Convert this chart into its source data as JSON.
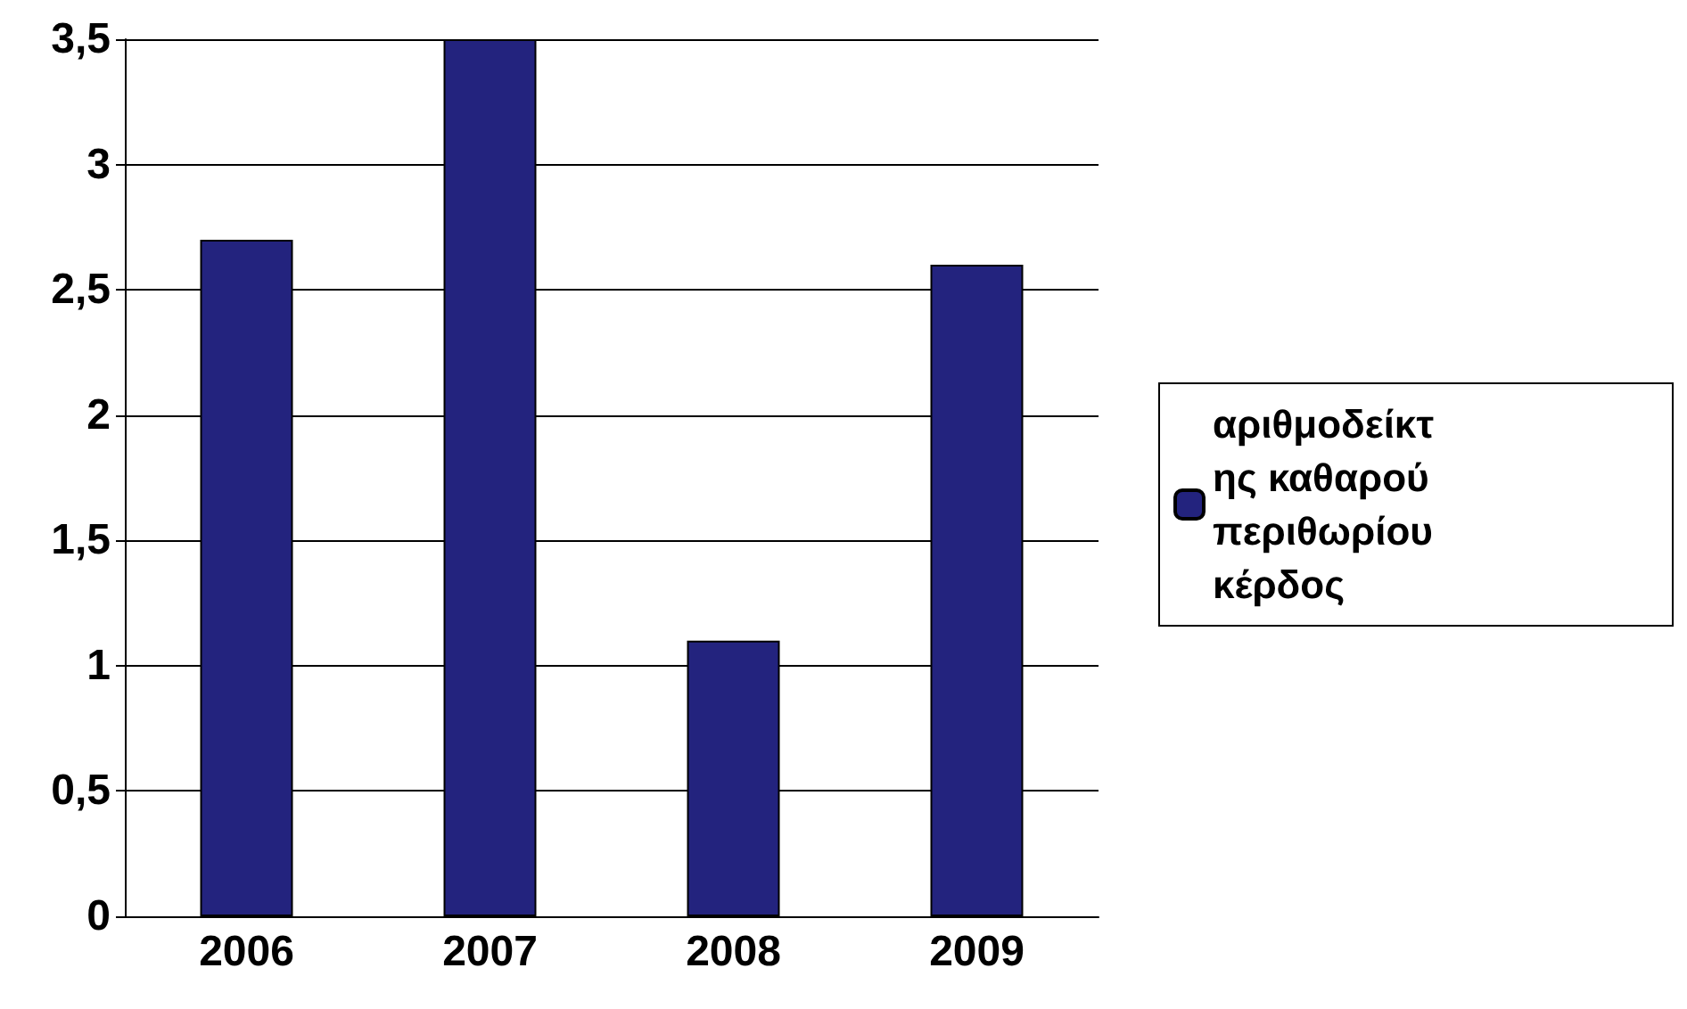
{
  "chart_data": {
    "type": "bar",
    "categories": [
      "2006",
      "2007",
      "2008",
      "2009"
    ],
    "series": [
      {
        "name": "αριθμοδείκτης καθαρού περιθωρίου κέρδος",
        "color": "#23237e",
        "values": [
          2.7,
          3.5,
          1.1,
          2.6
        ]
      }
    ],
    "ylim": [
      0,
      3.5
    ],
    "yticks": [
      0,
      {
        "value": 0.5,
        "label": "0,5"
      },
      1,
      {
        "value": 1.5,
        "label": "1,5"
      },
      2,
      {
        "value": 2.5,
        "label": "2,5"
      },
      3,
      {
        "value": 3.5,
        "label": "3,5"
      }
    ],
    "grid": "y",
    "legend": "right"
  }
}
